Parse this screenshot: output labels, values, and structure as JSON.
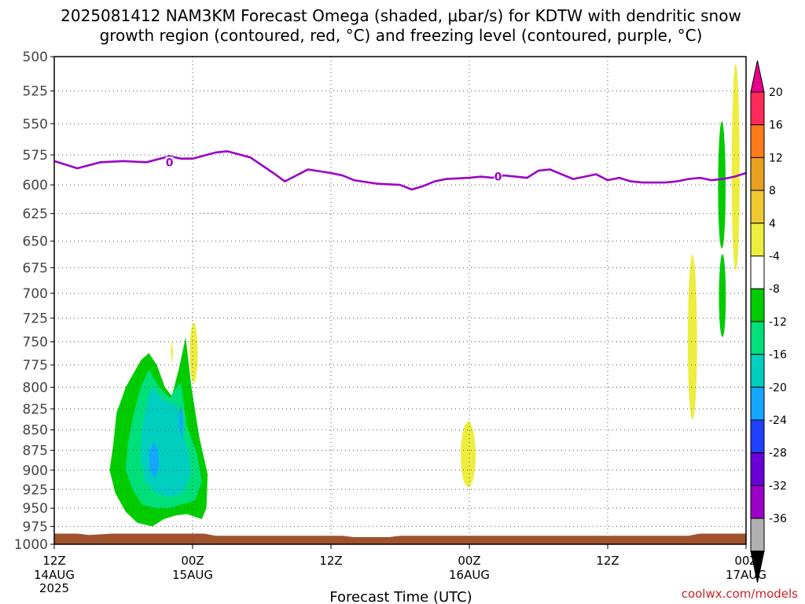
{
  "title_line1": "2025081412 NAM3KM Forecast Omega (shaded, μbar/s) for KDTW with dendritic snow",
  "title_line2": "growth region (contoured, red, °C) and freezing level (contoured, purple, °C)",
  "xlabel": "Forecast Time (UTC)",
  "credit": "coolwx.com/models",
  "colors": {
    "freezing_line": "#9b00c9",
    "terrain": "#a0522d"
  },
  "chart_data": {
    "type": "heatmap",
    "title": "2025081412 NAM3KM Forecast Omega (shaded, μbar/s) for KDTW with dendritic snow growth region (contoured, red, °C) and freezing level (contoured, purple, °C)",
    "xlabel": "Forecast Time (UTC)",
    "ylabel": "",
    "x_range_hours": [
      0,
      60
    ],
    "ylim": [
      1000,
      500
    ],
    "y_log_scale": true,
    "grid": true,
    "y_ticks": [
      500,
      525,
      550,
      575,
      600,
      625,
      650,
      675,
      700,
      725,
      750,
      775,
      800,
      825,
      850,
      875,
      900,
      925,
      950,
      975,
      1000
    ],
    "x_ticks": [
      {
        "hour": 0,
        "label": "12Z",
        "sub1": "14AUG",
        "sub2": "2025"
      },
      {
        "hour": 12,
        "label": "00Z",
        "sub1": "15AUG",
        "sub2": ""
      },
      {
        "hour": 24,
        "label": "12Z",
        "sub1": "",
        "sub2": ""
      },
      {
        "hour": 36,
        "label": "00Z",
        "sub1": "16AUG",
        "sub2": ""
      },
      {
        "hour": 48,
        "label": "12Z",
        "sub1": "",
        "sub2": ""
      },
      {
        "hour": 60,
        "label": "00Z",
        "sub1": "17AUG",
        "sub2": ""
      }
    ],
    "colorbar": {
      "labels": [
        "20",
        "16",
        "12",
        "8",
        "4",
        "-4",
        "-8",
        "-12",
        "-16",
        "-20",
        "-24",
        "-28",
        "-32",
        "-36"
      ],
      "colors": [
        "#ff2a5a",
        "#ff7a1a",
        "#e8a020",
        "#f0c830",
        "#eded40",
        "#ffffff",
        "#00cc00",
        "#00e07a",
        "#00cfc0",
        "#15a6ff",
        "#1e40ff",
        "#6a00d8",
        "#9a00c8",
        "#b0b0b0"
      ],
      "top_arrow_color": "#e8008a",
      "bottom_arrow_color": "#000000"
    },
    "freezing_level": {
      "label": "0",
      "x_hours": [
        0,
        2,
        4,
        6,
        8,
        10,
        11,
        12,
        14,
        15,
        17,
        19,
        20,
        22,
        24,
        25,
        26,
        28,
        30,
        31,
        32,
        33,
        34,
        36,
        37,
        38,
        39,
        40,
        41,
        42,
        43,
        44,
        45,
        46,
        47,
        48,
        49,
        50,
        51,
        52,
        53,
        54,
        55,
        56,
        57,
        58,
        59,
        60
      ],
      "pressure_hpa": [
        580,
        586,
        581,
        580,
        581,
        576,
        578,
        578,
        573,
        572,
        577,
        590,
        597,
        587,
        590,
        592,
        596,
        599,
        600,
        604,
        601,
        597,
        595,
        594,
        593,
        594,
        592,
        593,
        594,
        588,
        587,
        591,
        595,
        593,
        591,
        596,
        594,
        597,
        598,
        598,
        598,
        597,
        595,
        594,
        596,
        595,
        593,
        590
      ],
      "label_points": [
        {
          "hour": 10,
          "pressure": 581
        },
        {
          "hour": 38.5,
          "pressure": 593
        }
      ]
    },
    "omega_regions": [
      {
        "category": "4",
        "color": "#eded40",
        "hour_center": 12.1,
        "pressure": [
          730,
          795
        ]
      },
      {
        "category": "4",
        "color": "#eded40",
        "hour_center": 36.0,
        "pressure": [
          840,
          920
        ]
      },
      {
        "category": "4",
        "color": "#eded40",
        "hour_center": 55.4,
        "pressure": [
          665,
          835
        ]
      },
      {
        "category": "4",
        "color": "#eded40",
        "hour_center": 59.1,
        "pressure": [
          505,
          675
        ]
      },
      {
        "category": "-4",
        "color": "#00cc00",
        "hour_center": 58.0,
        "pressure": [
          550,
          655
        ]
      },
      {
        "category": "-4",
        "color": "#00cc00",
        "hour_center": 57.8,
        "pressure": [
          665,
          745
        ]
      },
      {
        "category": "-4",
        "color": "#00cc00",
        "hour_center": 8.8,
        "pressure": [
          745,
          965
        ]
      },
      {
        "category": "-8",
        "color": "#00e07a",
        "hour_center": 8.6,
        "pressure": [
          780,
          950
        ]
      },
      {
        "category": "-12",
        "color": "#00cfc0",
        "hour_center": 9.0,
        "pressure": [
          800,
          930
        ]
      },
      {
        "category": "-16",
        "color": "#15a6ff",
        "hour_center": 8.6,
        "pressure": [
          865,
          910
        ]
      }
    ]
  }
}
